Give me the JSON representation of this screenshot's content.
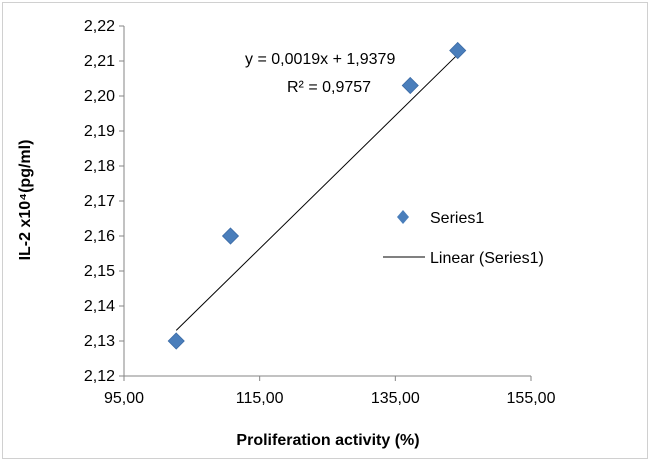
{
  "chart_data": {
    "type": "scatter",
    "title": "",
    "xlabel": "Proliferation activity (%)",
    "ylabel": "IL-2 x10⁴(pg/ml)",
    "xlim": [
      95,
      155
    ],
    "ylim": [
      2.12,
      2.22
    ],
    "x_ticks": [
      95,
      115,
      135,
      155
    ],
    "y_ticks": [
      2.12,
      2.13,
      2.14,
      2.15,
      2.16,
      2.17,
      2.18,
      2.19,
      2.2,
      2.21,
      2.22
    ],
    "x_tick_labels": [
      "95,00",
      "115,00",
      "135,00",
      "155,00"
    ],
    "y_tick_labels": [
      "2,12",
      "2,13",
      "2,14",
      "2,15",
      "2,16",
      "2,17",
      "2,18",
      "2,19",
      "2,20",
      "2,21",
      "2,22"
    ],
    "series": [
      {
        "name": "Series1",
        "color": "#4a7ebb",
        "marker": "diamond",
        "x": [
          102.7,
          110.7,
          137.2,
          144.2
        ],
        "y": [
          2.13,
          2.16,
          2.203,
          2.213
        ]
      }
    ],
    "trendline": {
      "name": "Linear (Series1)",
      "type": "linear",
      "slope": 0.0019,
      "intercept": 1.9379,
      "x_range": [
        102.7,
        144.2
      ],
      "equation_text": "y = 0,0019x + 1,9379",
      "r2_text": "R² = 0,9757",
      "color": "#000000"
    },
    "legend": {
      "position": "right",
      "entries": [
        "Series1",
        "Linear (Series1)"
      ]
    },
    "grid": false
  }
}
